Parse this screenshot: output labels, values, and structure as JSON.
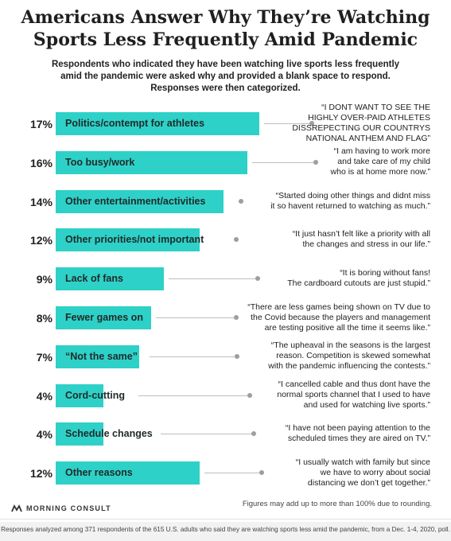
{
  "chart_data": {
    "type": "bar",
    "orientation": "horizontal",
    "title": "Americans Answer Why They’re Watching Sports Less Frequently Amid Pandemic",
    "subtitle": "Respondents who indicated they have been watching live sports less frequently amid the pandemic were asked why and provided a blank space to respond. Responses were then categorized.",
    "bar_color": "#2ed1c7",
    "xlim": [
      0,
      17
    ],
    "categories": [
      "Politics/contempt for athletes",
      "Too busy/work",
      "Other entertainment/activities",
      "Other priorities/not important",
      "Lack of fans",
      "Fewer games on",
      "“Not the same”",
      "Cord-cutting",
      "Schedule changes",
      "Other reasons"
    ],
    "values": [
      17,
      16,
      14,
      12,
      9,
      8,
      7,
      4,
      4,
      12
    ],
    "value_labels": [
      "17%",
      "16%",
      "14%",
      "12%",
      "9%",
      "8%",
      "7%",
      "4%",
      "4%",
      "12%"
    ],
    "quotes": [
      "“I DONT WANT TO SEE THE\nHIGHLY OVER-PAID ATHLETES\nDISSREPECTING OUR COUNTRYS\nNATIONAL ANTHEM AND FLAG”",
      "“I am having to work more\nand take care of my child\nwho is at home more now.”",
      "“Started doing other things and didnt miss\nit so havent returned to watching as much.”",
      "“It just hasn’t felt like a priority with all\nthe changes and stress in our life.”",
      "“It is boring without fans!\nThe cardboard cutouts are just stupid.”",
      "“There are less games being shown on TV due to\nthe Covid because the players and management\nare testing positive all the time it seems like.”",
      "“The upheaval in the seasons is the largest\nreason. Competition is skewed somewhat\nwith the pandemic influencing the contests.”",
      "“I cancelled cable and thus dont have the\nnormal sports channel that I used to have\nand used for watching live sports.”",
      "“I have not been paying attention to the\nscheduled times they are aired on TV.”",
      "“I usually watch with family but since\nwe have to worry about social\ndistancing we don’t get together.”"
    ]
  },
  "logo": {
    "text": "MORNING CONSULT",
    "icon": "morning-consult-logo-icon"
  },
  "note": "Figures may add up to more than 100% due to rounding.",
  "footer": "Responses analyzed among 371 respondents of the 615 U.S. adults who said they are watching sports less amid the pandemic, from a Dec. 1-4, 2020, poll."
}
